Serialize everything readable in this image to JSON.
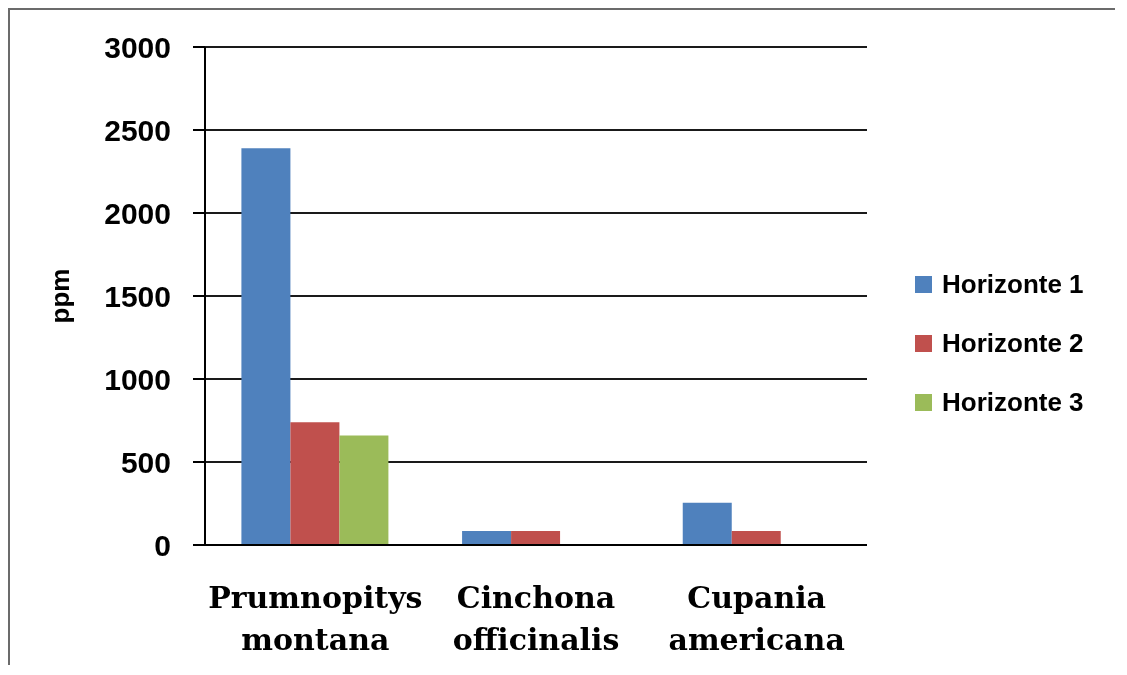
{
  "chart_data": {
    "type": "bar",
    "categories": [
      "Prumnopitys montana",
      "Cinchona officinalis",
      "Cupania americana"
    ],
    "series": [
      {
        "name": "Horizonte 1",
        "color": "#4f81bd",
        "values": [
          2390,
          85,
          255
        ]
      },
      {
        "name": "Horizonte 2",
        "color": "#c0504d",
        "values": [
          740,
          85,
          85
        ]
      },
      {
        "name": "Horizonte 3",
        "color": "#9bbb59",
        "values": [
          660,
          null,
          null
        ]
      }
    ],
    "ylabel": "ppm",
    "ylim": [
      0,
      3000
    ],
    "yticks": [
      0,
      500,
      1000,
      1500,
      2000,
      2500,
      3000
    ],
    "grid": "y",
    "legend": "right"
  }
}
